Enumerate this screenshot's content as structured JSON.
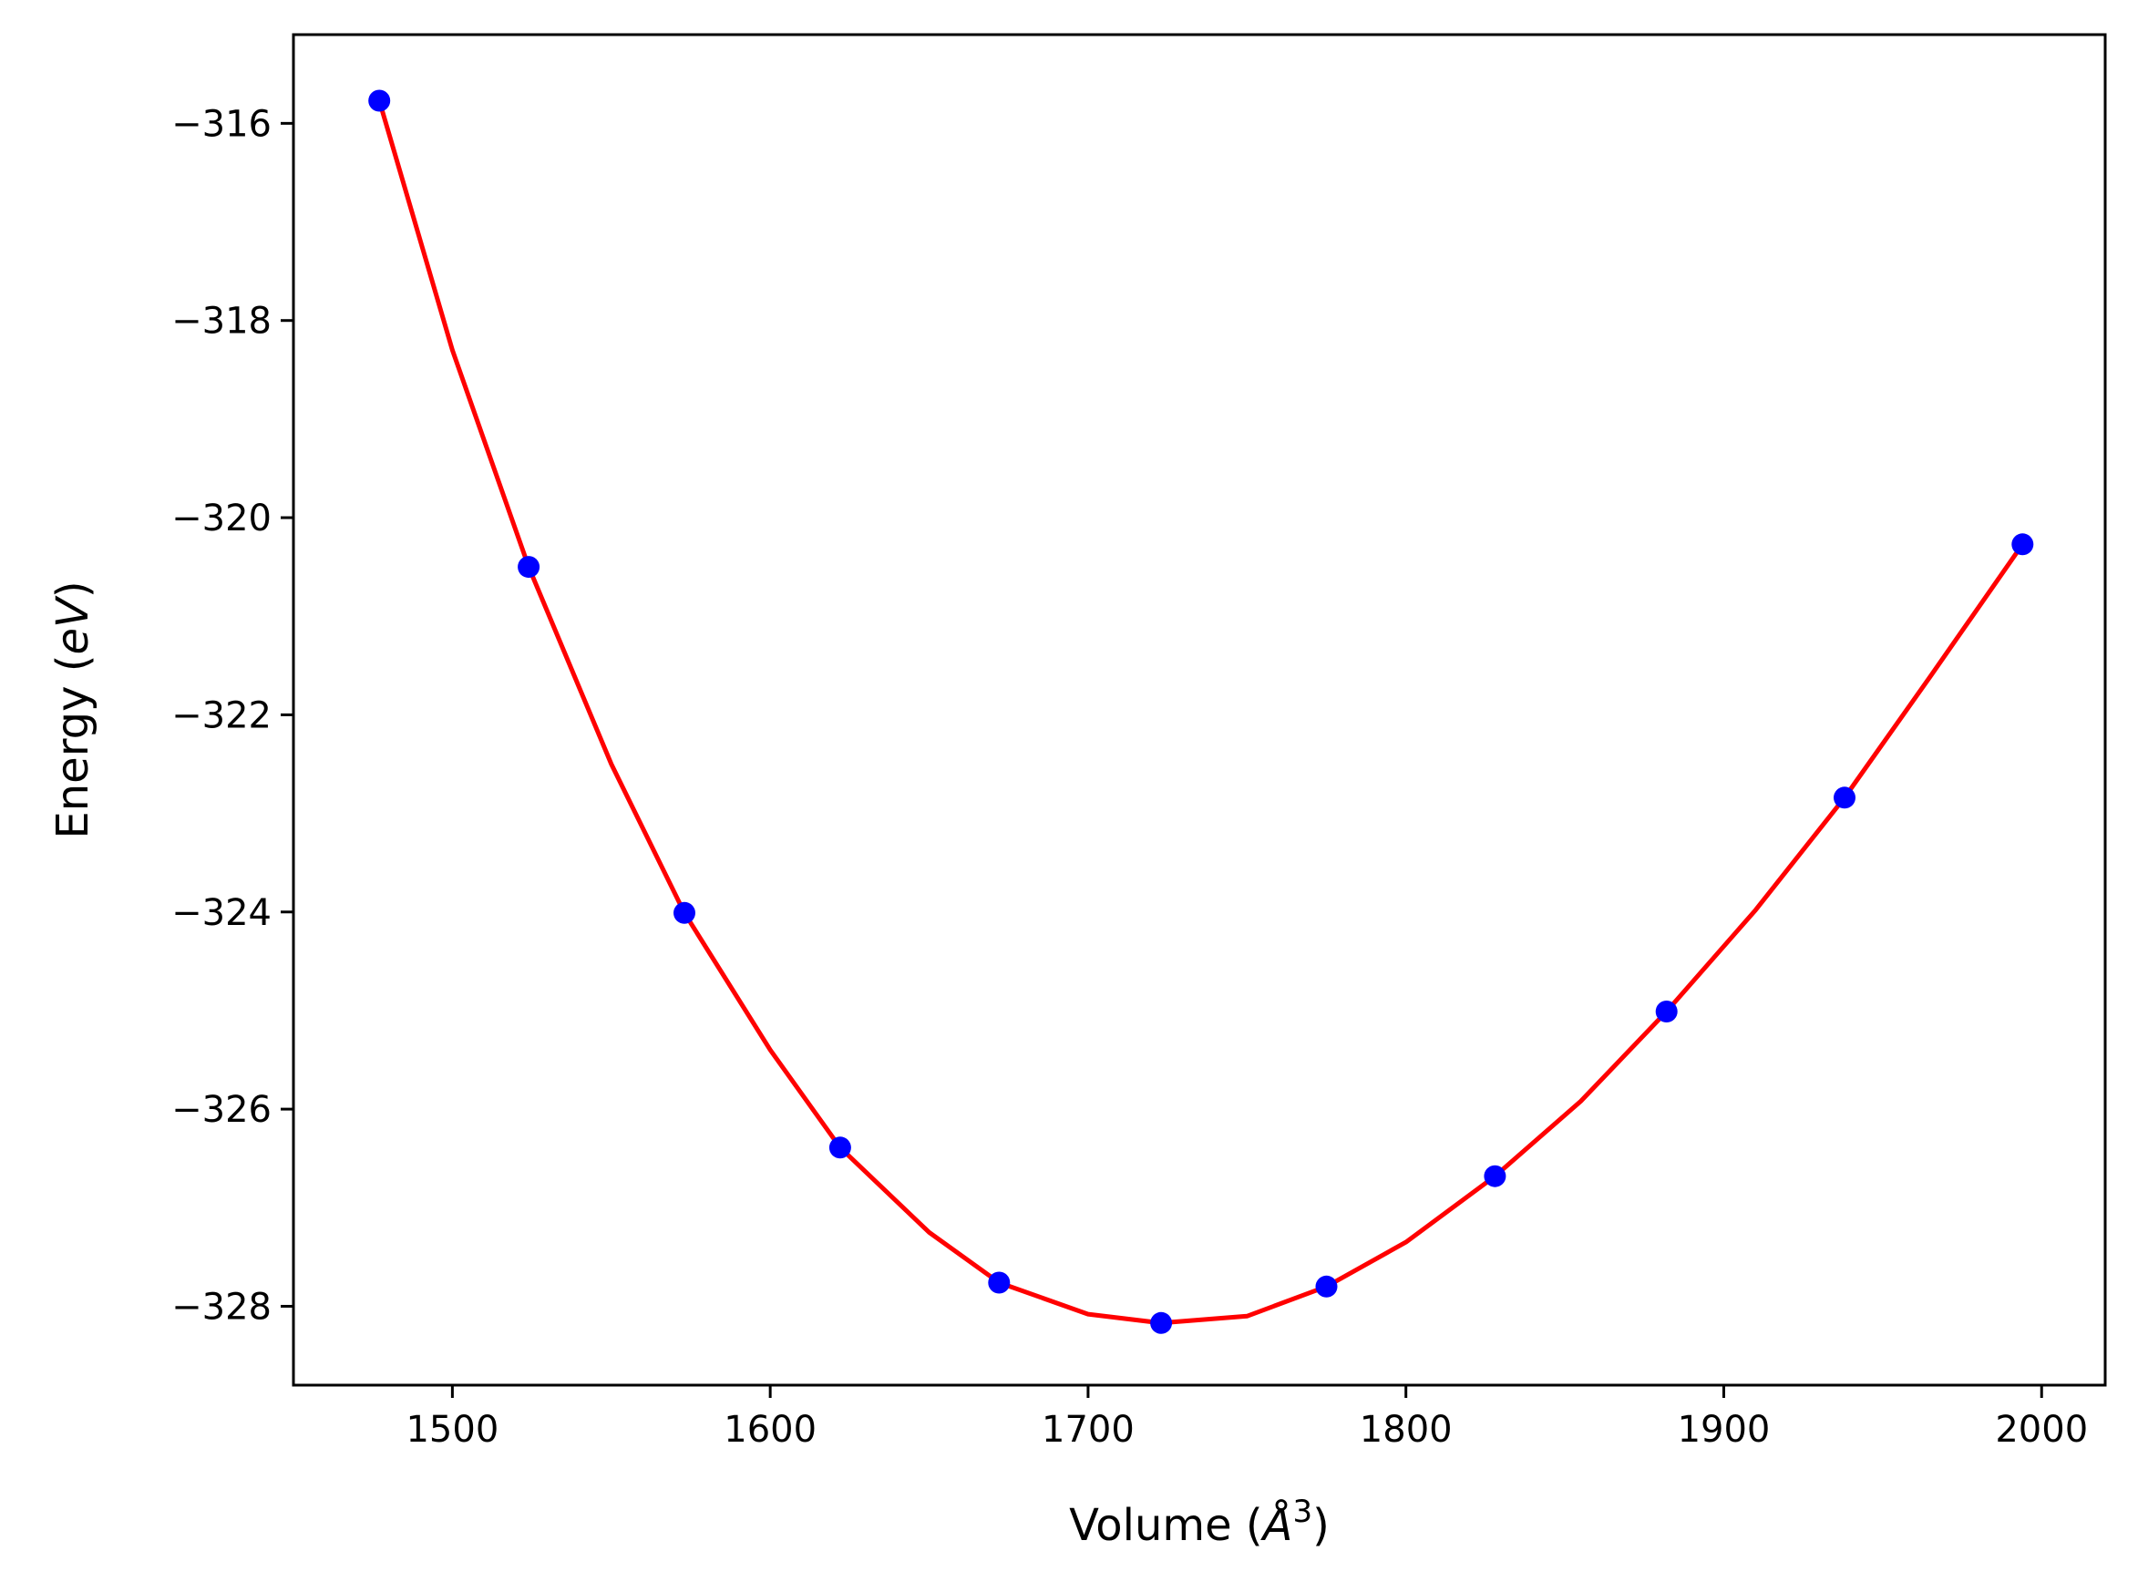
{
  "chart_data": {
    "type": "scatter",
    "xlabel_main": "Volume (",
    "xlabel_unit": "Å",
    "xlabel_exp": "3",
    "xlabel_close": ")",
    "ylabel_main": "Energy (",
    "ylabel_unit": "eV",
    "ylabel_close": ")",
    "xlim": [
      1450,
      2020
    ],
    "ylim": [
      -328.8,
      -315.1
    ],
    "xticks": [
      1500,
      1600,
      1700,
      1800,
      1900,
      2000
    ],
    "xtick_labels": [
      "1500",
      "1600",
      "1700",
      "1800",
      "1900",
      "2000"
    ],
    "yticks": [
      -316,
      -318,
      -320,
      -322,
      -324,
      -326,
      -328
    ],
    "ytick_labels": [
      "−316",
      "−318",
      "−320",
      "−322",
      "−324",
      "−326",
      "−328"
    ],
    "grid": false,
    "series": [
      {
        "kind": "points",
        "color": "#0000ff",
        "x": [
          1477,
          1524,
          1573,
          1622,
          1672,
          1723,
          1775,
          1828,
          1882,
          1938,
          1994
        ],
        "y": [
          -315.77,
          -320.5,
          -324.01,
          -326.39,
          -327.76,
          -328.17,
          -327.8,
          -326.68,
          -325.01,
          -322.84,
          -320.27
        ]
      },
      {
        "kind": "fit-line",
        "color": "#ff0000",
        "x": [
          1477,
          1500,
          1524,
          1550,
          1573,
          1600,
          1622,
          1650,
          1672,
          1700,
          1723,
          1750,
          1775,
          1800,
          1828,
          1855,
          1882,
          1910,
          1938,
          1965,
          1994
        ],
        "y": [
          -315.77,
          -318.3,
          -320.5,
          -322.5,
          -324.01,
          -325.4,
          -326.39,
          -327.25,
          -327.76,
          -328.08,
          -328.17,
          -328.1,
          -327.8,
          -327.35,
          -326.68,
          -325.92,
          -325.01,
          -323.98,
          -322.84,
          -321.61,
          -320.27
        ]
      }
    ]
  }
}
